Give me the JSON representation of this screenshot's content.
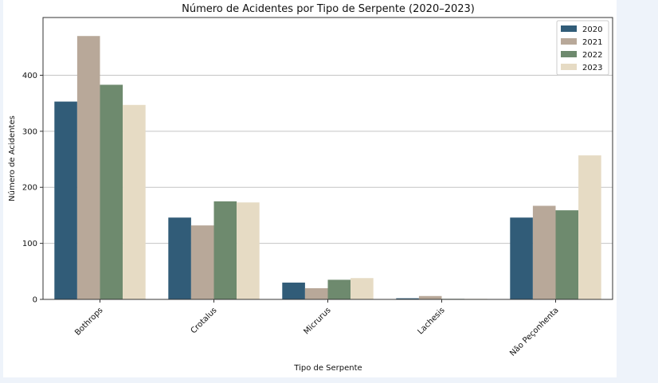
{
  "chart_data": {
    "type": "bar",
    "title": "Número de Acidentes por Tipo de Serpente (2020–2023)",
    "xlabel": "Tipo de Serpente",
    "ylabel": "Número de Acidentes",
    "categories": [
      "Bothrops",
      "Crotalus",
      "Micrurus",
      "Lachesis",
      "Não Peçonhenta"
    ],
    "series": [
      {
        "name": "2020",
        "color": "#315c78",
        "values": [
          353,
          146,
          30,
          2,
          146
        ]
      },
      {
        "name": "2021",
        "color": "#b8a899",
        "values": [
          470,
          132,
          20,
          6,
          167
        ]
      },
      {
        "name": "2022",
        "color": "#6e8a6e",
        "values": [
          383,
          175,
          35,
          1,
          159
        ]
      },
      {
        "name": "2023",
        "color": "#e6dbc4",
        "values": [
          347,
          173,
          38,
          1,
          257
        ]
      }
    ],
    "ylim": [
      0,
      503
    ],
    "yticks": [
      0,
      100,
      200,
      300,
      400
    ],
    "grid": "horizontal",
    "legend_position": "top-right"
  }
}
